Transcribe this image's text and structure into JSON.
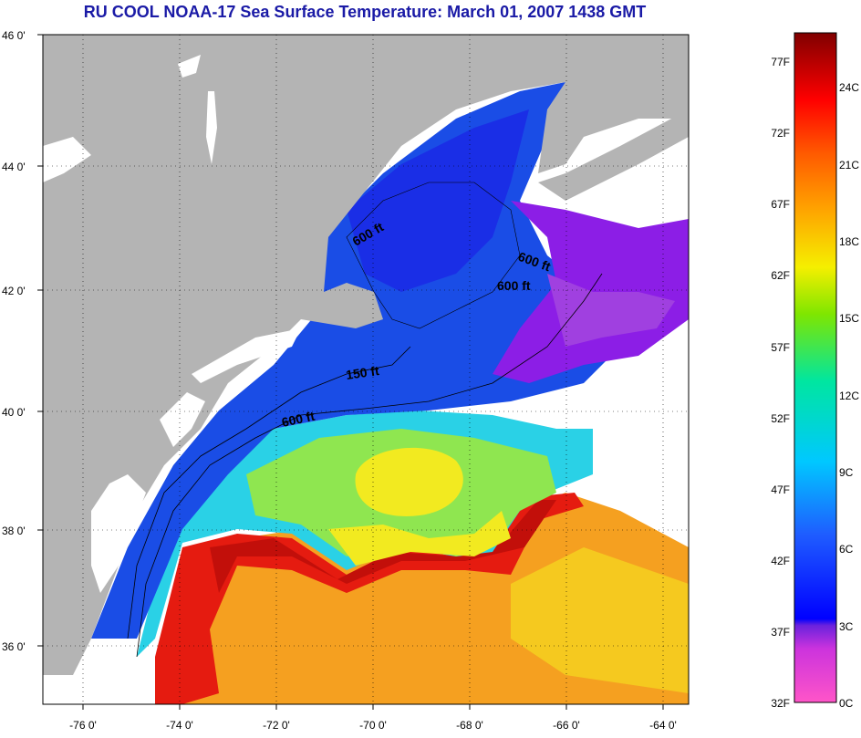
{
  "title": "RU COOL  NOAA-17  Sea Surface Temperature:  March 01, 2007 1438 GMT",
  "lat_ticks": [
    "46 0'",
    "44 0'",
    "42 0'",
    "40 0'",
    "38 0'",
    "36 0'"
  ],
  "lon_ticks": [
    "-76 0'",
    "-74 0'",
    "-72 0'",
    "-70 0'",
    "-68 0'",
    "-66 0'",
    "-64 0'"
  ],
  "contour_labels": [
    "600 ft",
    "600 ft",
    "600 ft",
    "150 ft",
    "600 ft"
  ],
  "colorbar": {
    "fahrenheit": [
      "77F",
      "72F",
      "67F",
      "62F",
      "57F",
      "52F",
      "47F",
      "42F",
      "37F",
      "32F"
    ],
    "celsius": [
      "24C",
      "21C",
      "18C",
      "15C",
      "12C",
      "9C",
      "6C",
      "3C",
      "0C"
    ]
  },
  "colors": {
    "land": "#b4b4b4",
    "cloud": "#ffffff",
    "title": "#1a1aa6",
    "gulf_stream": "#e51b10",
    "slope_water": "#2ad1e6",
    "shelf_water": "#1a4de6",
    "cold_water": "#8c1ee6",
    "warm_sargasso": "#f0981e"
  }
}
